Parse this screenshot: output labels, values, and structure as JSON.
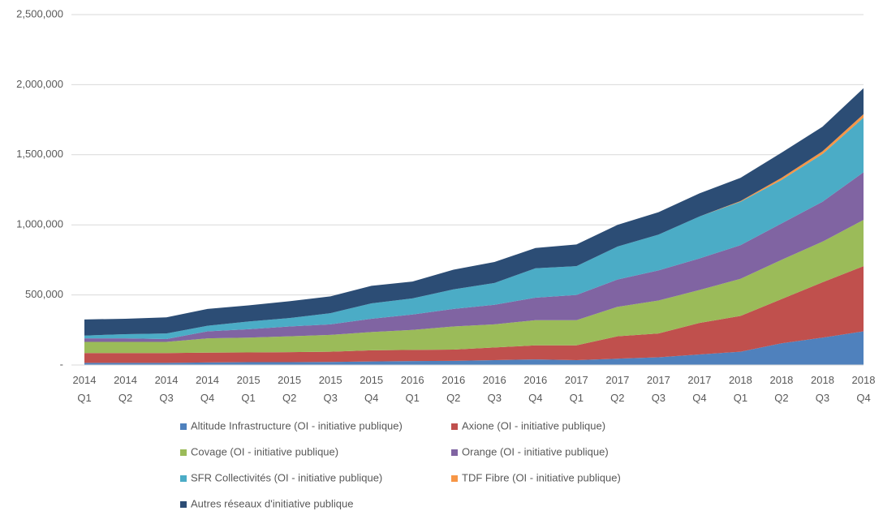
{
  "chart_data": {
    "type": "stacked_area",
    "categories": [
      "2014 Q1",
      "2014 Q2",
      "2014 Q3",
      "2014 Q4",
      "2015 Q1",
      "2015 Q2",
      "2015 Q3",
      "2015 Q4",
      "2016 Q1",
      "2016 Q2",
      "2016 Q3",
      "2016 Q4",
      "2017 Q1",
      "2017 Q2",
      "2017 Q3",
      "2017 Q4",
      "2018 Q1",
      "2018 Q2",
      "2018 Q3",
      "2018 Q4"
    ],
    "series": [
      {
        "name": "Altitude Infrastructure (OI - initiative publique)",
        "color": "#4f81bd",
        "values": [
          15000,
          15000,
          15000,
          18000,
          20000,
          20000,
          22000,
          25000,
          28000,
          30000,
          35000,
          40000,
          35000,
          45000,
          55000,
          75000,
          95000,
          155000,
          195000,
          240000
        ]
      },
      {
        "name": "Axione (OI - initiative publique)",
        "color": "#c0504d",
        "values": [
          70000,
          70000,
          70000,
          70000,
          70000,
          72000,
          73000,
          80000,
          80000,
          80000,
          90000,
          100000,
          105000,
          160000,
          170000,
          225000,
          255000,
          315000,
          395000,
          465000
        ]
      },
      {
        "name": "Covage (OI - initiative publique)",
        "color": "#9bbb59",
        "values": [
          80000,
          80000,
          80000,
          102000,
          105000,
          113000,
          120000,
          130000,
          142000,
          165000,
          165000,
          180000,
          180000,
          210000,
          235000,
          235000,
          265000,
          280000,
          290000,
          330000
        ]
      },
      {
        "name": "Orange (OI - initiative publique)",
        "color": "#8064a2",
        "values": [
          25000,
          25000,
          20000,
          50000,
          60000,
          70000,
          75000,
          95000,
          110000,
          125000,
          140000,
          160000,
          180000,
          195000,
          215000,
          225000,
          240000,
          260000,
          285000,
          340000
        ]
      },
      {
        "name": "SFR Collectivités (OI - initiative publique)",
        "color": "#4bacc6",
        "values": [
          20000,
          30000,
          40000,
          40000,
          55000,
          60000,
          80000,
          110000,
          115000,
          140000,
          155000,
          210000,
          205000,
          235000,
          255000,
          300000,
          310000,
          310000,
          340000,
          390000
        ]
      },
      {
        "name": "TDF Fibre (OI - initiative publique)",
        "color": "#f79646",
        "values": [
          0,
          0,
          0,
          0,
          0,
          0,
          0,
          0,
          0,
          0,
          0,
          0,
          0,
          0,
          0,
          0,
          5000,
          15000,
          20000,
          25000
        ]
      },
      {
        "name": "Autres réseaux d'initiative publique",
        "color": "#2c4d75",
        "values": [
          115000,
          110000,
          115000,
          120000,
          115000,
          120000,
          120000,
          125000,
          120000,
          140000,
          150000,
          145000,
          155000,
          155000,
          160000,
          165000,
          165000,
          180000,
          175000,
          185000
        ]
      }
    ],
    "ylim": [
      0,
      2500000
    ],
    "yticks": [
      {
        "value": 0,
        "label": "-"
      },
      {
        "value": 500000,
        "label": "500,000"
      },
      {
        "value": 1000000,
        "label": "1,000,000"
      },
      {
        "value": 1500000,
        "label": "1,500,000"
      },
      {
        "value": 2000000,
        "label": "2,000,000"
      },
      {
        "value": 2500000,
        "label": "2,500,000"
      }
    ],
    "grid": true
  }
}
